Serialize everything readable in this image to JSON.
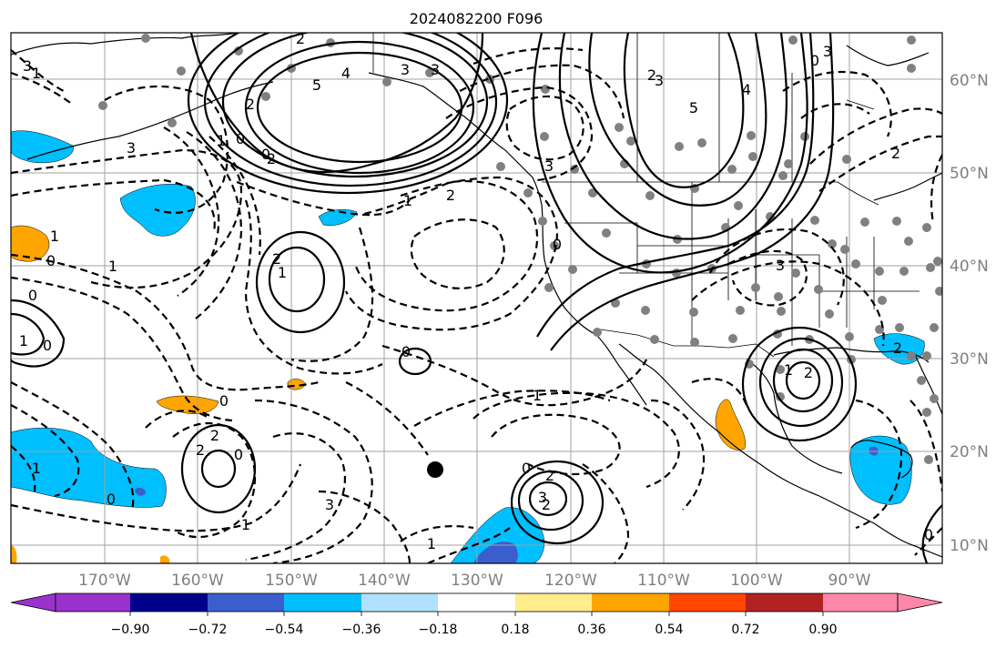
{
  "title": "2024082200 F096",
  "lon_labels": [
    "170°W",
    "160°W",
    "150°W",
    "140°W",
    "130°W",
    "120°W",
    "110°W",
    "100°W",
    "90°W"
  ],
  "lat_labels": [
    "60°N",
    "50°N",
    "40°N",
    "30°N",
    "20°N",
    "10°N"
  ],
  "colorbar": {
    "colors": [
      "#9932cc",
      "#00008b",
      "#3a5fcd",
      "#00bfff",
      "#b0e2ff",
      "#ffffff",
      "#ffec8b",
      "#ffa500",
      "#ff4500",
      "#b22222",
      "#ff88aa"
    ],
    "tick_labels": [
      "−0.90",
      "−0.72",
      "−0.54",
      "−0.36",
      "−0.18",
      "0.18",
      "0.36",
      "0.54",
      "0.72",
      "0.90"
    ]
  },
  "contour_labels": {
    "c1": "2",
    "c2": "4",
    "c3": "3",
    "c4": "5",
    "c5": "3",
    "c6": "2",
    "c7": "0",
    "c8": "1",
    "c9": "3",
    "c10": "2",
    "c11": "1",
    "c12": "3",
    "c13": "5",
    "c14": "4",
    "c15": "3",
    "c16": "0",
    "c17": "3",
    "c18": "3",
    "c19": "0",
    "c20": "1",
    "c21": "2",
    "c22": "3",
    "c23": "2",
    "c24": "2",
    "c25": "0",
    "c26": "2",
    "c27": "1",
    "c28": "0",
    "c29": "0",
    "c30": "1",
    "c31": "1",
    "c32": "0",
    "c33": "2",
    "c34": "1",
    "c35": "0",
    "c36": "0",
    "c37": "1",
    "c38": "2",
    "c39": "2",
    "c40": "0",
    "c41": "1",
    "c42": "1",
    "c43": "0",
    "c44": "1",
    "c45": "2",
    "c46": "3",
    "c47": "0",
    "c48": "2",
    "c49": "3",
    "c50": "1",
    "c51": "0",
    "c52": "2"
  },
  "colors": {
    "positive_contour": "#000000",
    "negative_contour": "#000000",
    "gridline": "#a0a0a0",
    "station_dot": "#808080"
  }
}
